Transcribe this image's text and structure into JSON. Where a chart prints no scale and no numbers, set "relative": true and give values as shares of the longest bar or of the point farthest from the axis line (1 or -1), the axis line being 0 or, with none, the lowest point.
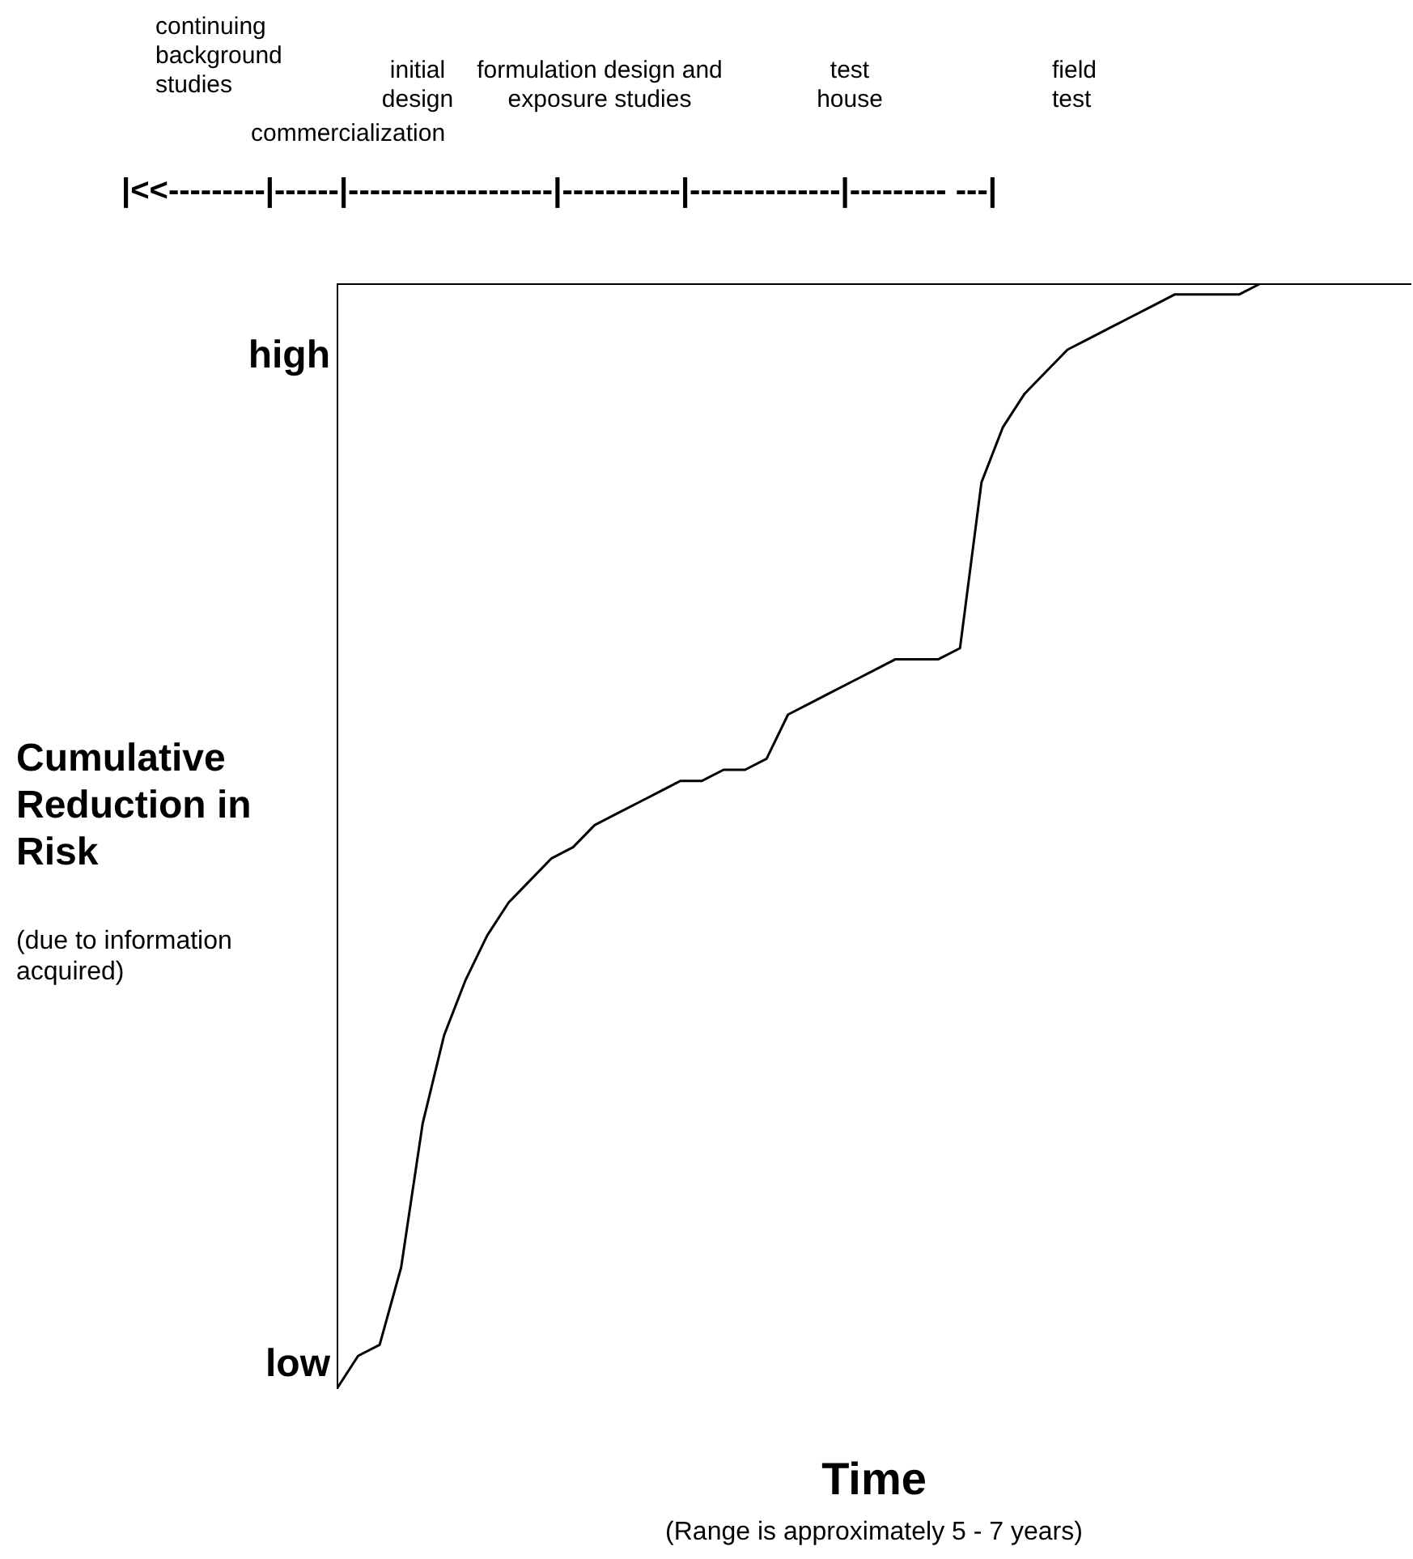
{
  "chart_data": {
    "type": "line",
    "relative": true,
    "ylabel": "Cumulative Reduction in Risk",
    "xlabel": "Time",
    "annotations": [
      "continuing background studies",
      "commercialization",
      "initial design",
      "formulation design and exposure studies",
      "test house",
      "field test",
      "|<<---------|------|-------------------|-----------|--------------|--------- ---|",
      "high",
      "low",
      "(due to information acquired)",
      "(Range is approximately 5 - 7 years)"
    ],
    "categories": [
      null,
      null,
      null,
      null,
      null,
      null,
      null,
      null,
      null,
      null,
      null,
      null,
      null,
      null,
      null,
      null,
      null,
      null,
      null,
      null,
      null,
      null,
      null,
      null,
      null,
      null,
      null,
      null,
      null,
      null,
      null,
      null,
      null,
      null,
      null,
      null,
      null,
      null,
      null,
      null,
      null,
      null,
      null,
      null,
      null,
      null,
      null,
      null,
      null,
      null,
      null
    ],
    "series": [
      {
        "color": "#000000",
        "values": [
          0,
          0.03,
          0.04,
          0.11,
          0.24,
          0.32,
          0.37,
          0.41,
          0.44,
          0.46,
          0.48,
          0.49,
          0.51,
          0.52,
          0.53,
          0.54,
          0.55,
          0.55,
          0.56,
          0.56,
          0.57,
          0.61,
          0.62,
          0.63,
          0.64,
          0.65,
          0.66,
          0.66,
          0.66,
          0.67,
          0.82,
          0.87,
          0.9,
          0.92,
          0.94,
          0.95,
          0.96,
          0.97,
          0.98,
          0.99,
          0.99,
          0.99,
          0.99,
          1,
          1,
          1,
          1,
          1,
          1,
          1,
          1
        ]
      }
    ]
  }
}
